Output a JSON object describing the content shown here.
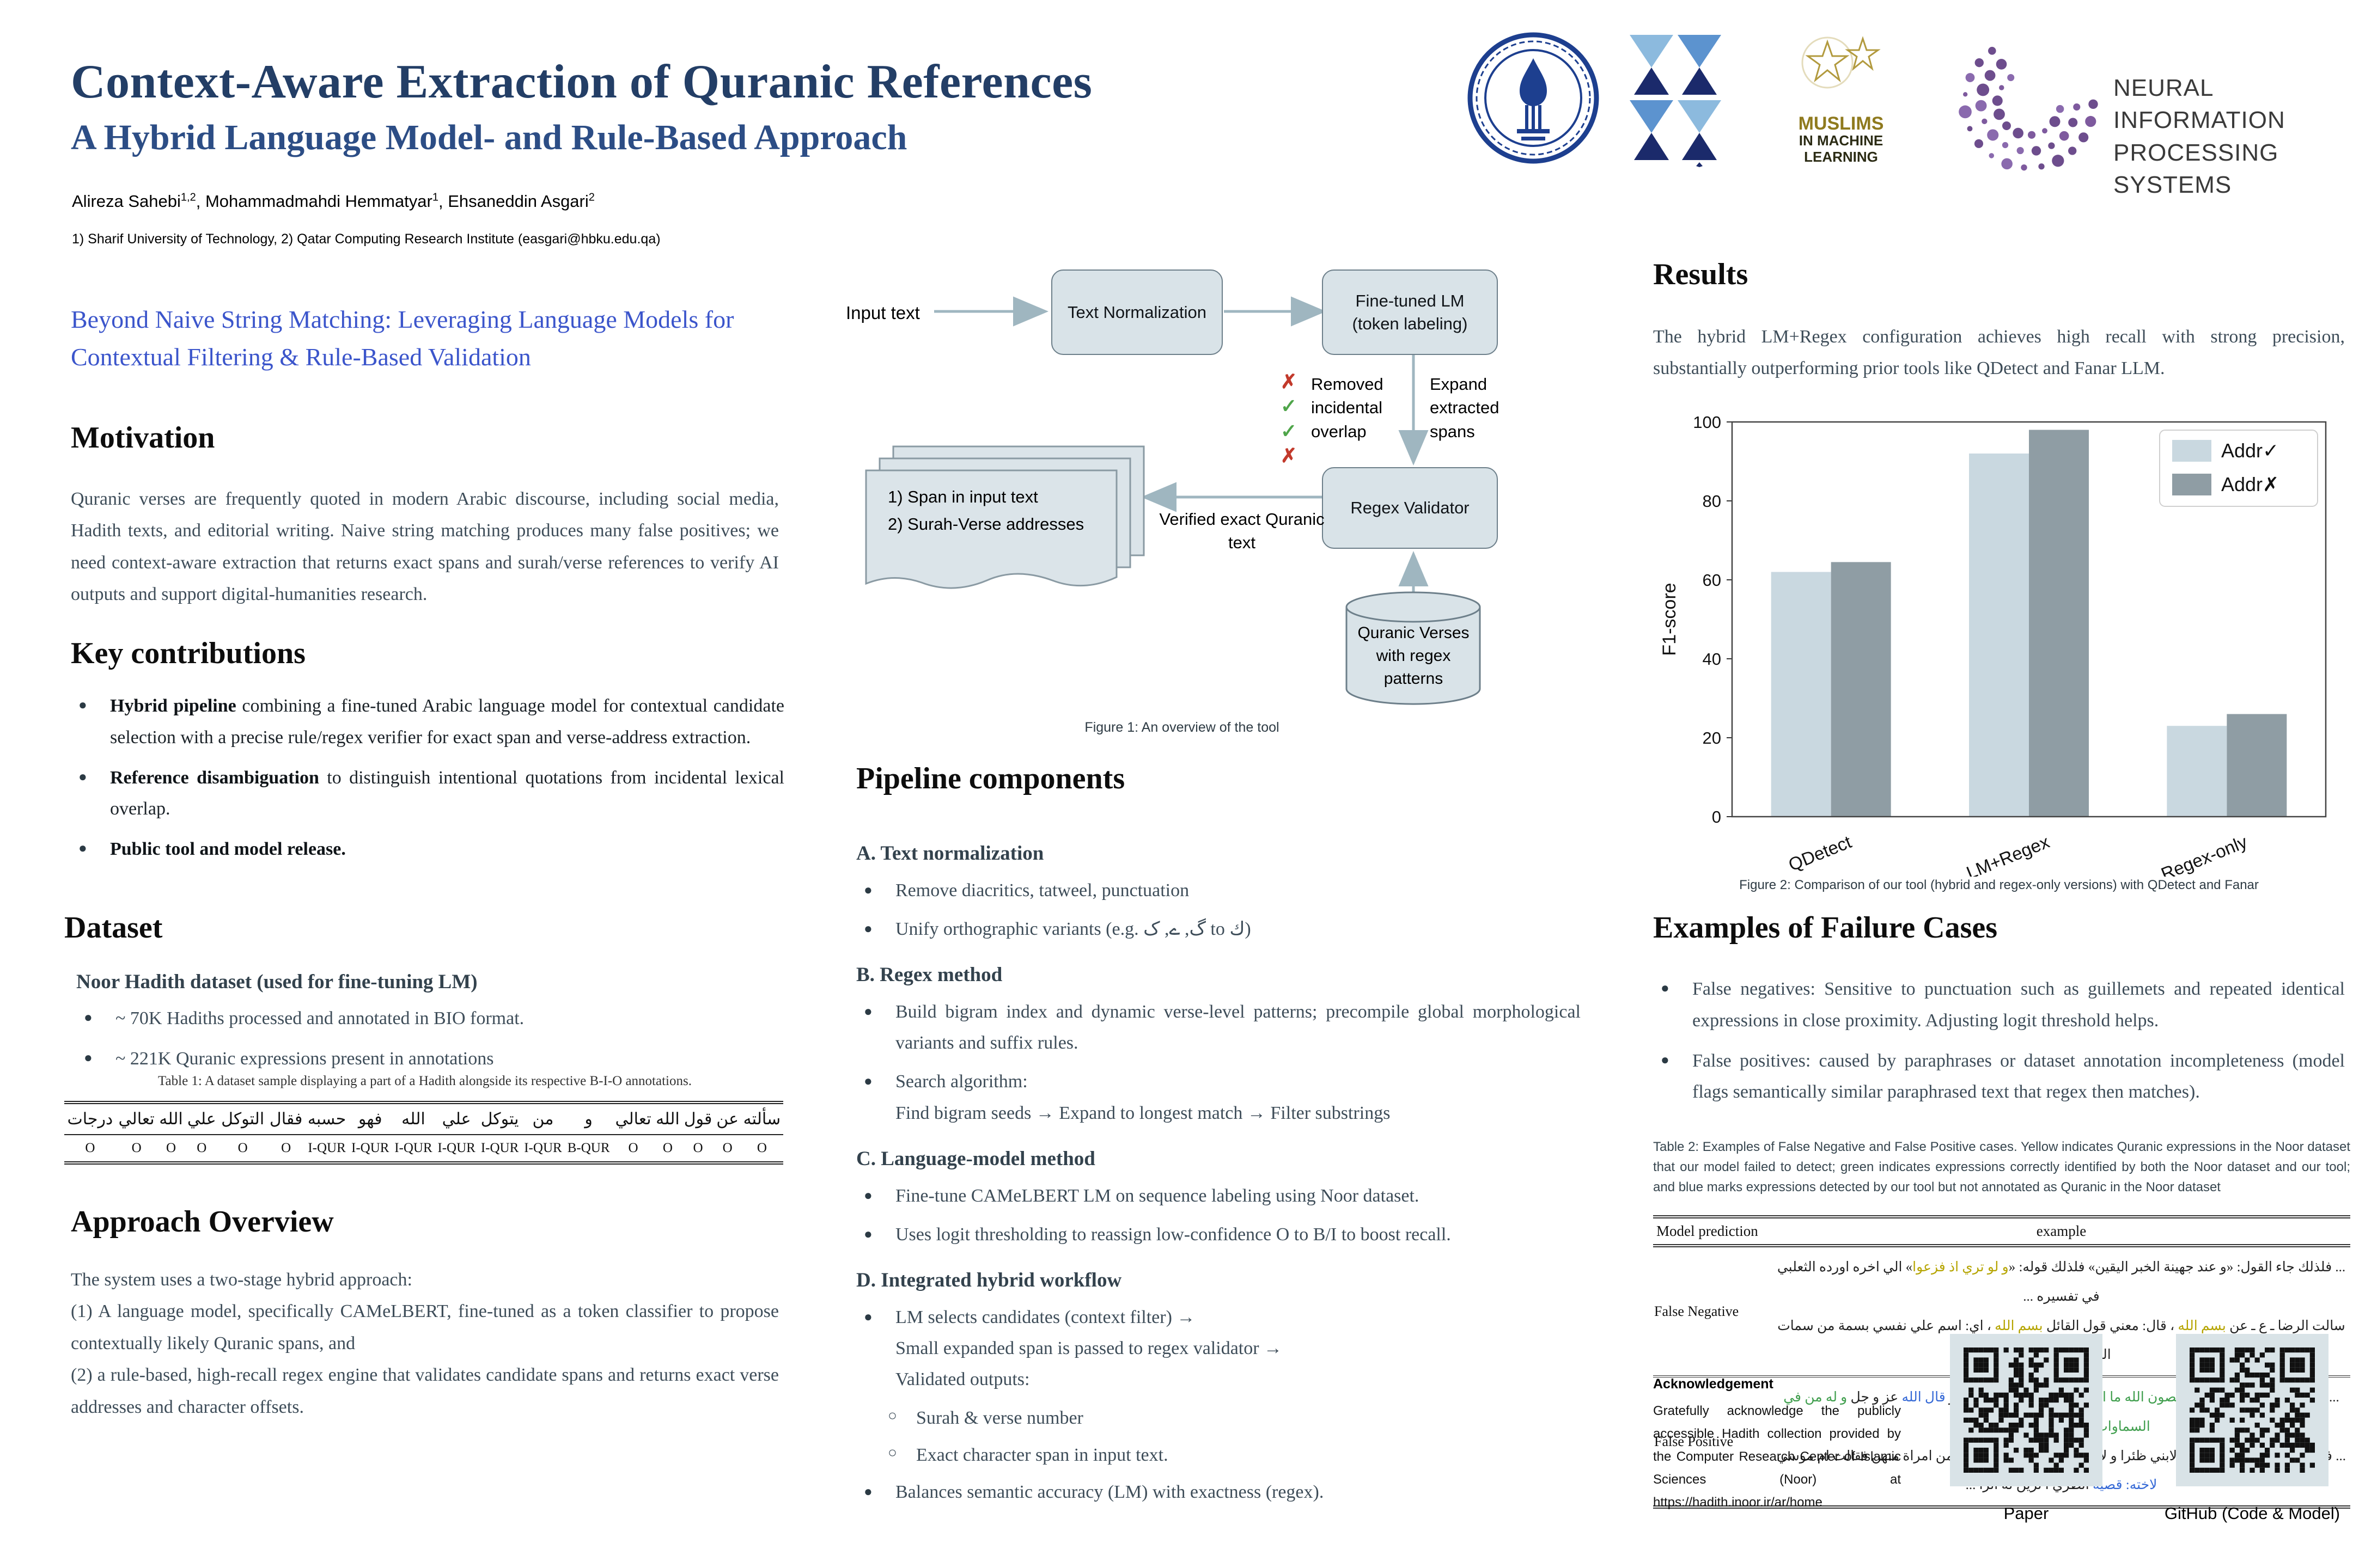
{
  "header": {
    "title": "Context-Aware Extraction of Quranic References",
    "subtitle": "A Hybrid Language Model- and Rule-Based Approach",
    "authors": [
      {
        "name": "Alireza Sahebi",
        "sup": "1,2"
      },
      {
        "name": "Mohammadmahdi Hemmatyar",
        "sup": "1"
      },
      {
        "name": "Ehsaneddin Asgari",
        "sup": "2"
      }
    ],
    "affiliation": "1) Sharif University of Technology, 2) Qatar Computing Research Institute (easgari@hbku.edu.qa)"
  },
  "logos": {
    "sharif": "Sharif University of Technology",
    "miml_lines": [
      "MUSLIMS",
      "IN MACHINE",
      "LEARNING"
    ],
    "neurips_lines": [
      "NEURAL INFORMATION",
      "PROCESSING SYSTEMS"
    ]
  },
  "left": {
    "lead": "Beyond Naive String Matching: Leveraging Language Models for Contextual Filtering & Rule-Based Validation",
    "motivation_heading": "Motivation",
    "motivation_text": "Quranic verses are frequently quoted in modern Arabic discourse, including social media, Hadith texts, and editorial writing. Naive string matching produces many false positives; we need context-aware extraction that returns exact spans and surah/verse references to verify AI outputs and support digital-humanities research.",
    "key_heading": "Key contributions",
    "key_bullets": [
      {
        "bold": "Hybrid pipeline",
        "text": " combining a fine-tuned Arabic language model for contextual candidate selection with a precise rule/regex verifier for exact span and verse-address extraction."
      },
      {
        "bold": "Reference disambiguation",
        "text": " to distinguish intentional quotations from incidental lexical overlap."
      },
      {
        "bold": "Public tool and model release.",
        "text": ""
      }
    ],
    "dataset_heading": "Dataset",
    "dataset_subheading": "Noor Hadith dataset (used for fine-tuning LM)",
    "dataset_bullets": [
      "~ 70K Hadiths processed and annotated in BIO format.",
      "~ 221K Quranic expressions present in annotations"
    ],
    "table1_caption": "Table 1: A dataset sample displaying a part of a Hadith alongside its respective B-I-O annotations.",
    "table1_tokens": [
      {
        "ar": "سألته",
        "tag": "O"
      },
      {
        "ar": "عن",
        "tag": "O"
      },
      {
        "ar": "قول",
        "tag": "O"
      },
      {
        "ar": "الله",
        "tag": "O"
      },
      {
        "ar": "تعالي",
        "tag": "O"
      },
      {
        "ar": "و",
        "tag": "B-QUR"
      },
      {
        "ar": "من",
        "tag": "I-QUR"
      },
      {
        "ar": "يتوكل",
        "tag": "I-QUR"
      },
      {
        "ar": "علي",
        "tag": "I-QUR"
      },
      {
        "ar": "الله",
        "tag": "I-QUR"
      },
      {
        "ar": "فهو",
        "tag": "I-QUR"
      },
      {
        "ar": "حسبه",
        "tag": "I-QUR"
      },
      {
        "ar": "فقال",
        "tag": "O"
      },
      {
        "ar": "التوكل",
        "tag": "O"
      },
      {
        "ar": "علي",
        "tag": "O"
      },
      {
        "ar": "الله",
        "tag": "O"
      },
      {
        "ar": "تعالي",
        "tag": "O"
      },
      {
        "ar": "درجات",
        "tag": "O"
      }
    ],
    "approach_heading": "Approach Overview",
    "approach_lines": [
      "The system uses a two-stage hybrid approach:",
      "(1) A language model, specifically CAMeLBERT, fine-tuned as a token classifier to propose contextually likely Quranic spans, and",
      "(2) a rule-based, high-recall regex engine that validates candidate spans and returns exact verse addresses and character offsets."
    ]
  },
  "figure1": {
    "input_label": "Input text",
    "box_normalization": "Text Normalization",
    "box_lm": "Fine-tuned LM (token labeling)",
    "marks": [
      "✗",
      "✓",
      "✓",
      "✗"
    ],
    "removed_label": "Removed incidental overlap",
    "expand_label": "Expand extracted spans",
    "box_regex": "Regex Validator",
    "verified_label": "Verified exact Quranic text",
    "outputs": [
      "1) Span in input text",
      "2) Surah-Verse addresses"
    ],
    "db_label": "Quranic Verses with regex patterns",
    "caption": "Figure 1: An overview of the tool"
  },
  "pipeline": {
    "heading": "Pipeline components",
    "sections": [
      {
        "title": "A. Text normalization",
        "items": [
          {
            "lines": [
              "Remove diacritics, tatweel, punctuation"
            ]
          },
          {
            "lines": [
              "Unify orthographic variants (e.g. گ, ے, ک to ك)"
            ]
          }
        ]
      },
      {
        "title": "B. Regex method",
        "items": [
          {
            "lines": [
              "Build bigram index and dynamic verse-level patterns; precompile global morphological variants and suffix rules."
            ]
          },
          {
            "lines": [
              "Search algorithm:",
              "Find bigram seeds → Expand to longest match → Filter substrings"
            ]
          }
        ]
      },
      {
        "title": "C. Language-model method",
        "items": [
          {
            "lines": [
              "Fine-tune CAMeLBERT LM on sequence labeling using Noor dataset."
            ]
          },
          {
            "lines": [
              "Uses logit thresholding to reassign low-confidence O to B/I to boost recall."
            ]
          }
        ]
      },
      {
        "title": "D. Integrated hybrid workflow",
        "items": [
          {
            "lines": [
              "LM selects candidates (context filter) →",
              "Small expanded span is passed to regex validator →",
              "Validated outputs:"
            ],
            "sub": [
              "Surah & verse number",
              "Exact character span in input text."
            ]
          },
          {
            "lines": [
              "Balances semantic accuracy (LM) with exactness (regex)."
            ]
          }
        ]
      }
    ]
  },
  "results": {
    "heading": "Results",
    "text": "The hybrid LM+Regex configuration achieves high recall with strong precision, substantially outperforming prior tools like QDetect and Fanar LLM."
  },
  "chart_data": {
    "type": "bar",
    "title": "",
    "categories": [
      "QDetect",
      "LM+Regex",
      "Regex-only"
    ],
    "series": [
      {
        "name": "Addr✓",
        "values": [
          62,
          92,
          23
        ],
        "color": "#c9d8e0"
      },
      {
        "name": "Addr✗",
        "values": [
          64.5,
          98,
          26
        ],
        "color": "#8f9da4"
      }
    ],
    "xlabel": "",
    "ylabel": "F1-score",
    "ylim": [
      0,
      100
    ],
    "yticks": [
      0,
      20,
      40,
      60,
      80,
      100
    ],
    "grid": false,
    "legend_position": "upper right",
    "caption": "Figure 2: Comparison of our tool (hybrid and regex-only versions) with QDetect and Fanar"
  },
  "failure": {
    "heading": "Examples of Failure Cases",
    "bullets": [
      "False negatives: Sensitive to punctuation such as guillemets and repeated identical expressions in close proximity. Adjusting logit threshold helps.",
      "False positives: caused by paraphrases or dataset annotation incompleteness (model flags semantically similar paraphrased text that regex then matches)."
    ]
  },
  "table2": {
    "caption": "Table 2: Examples of False Negative and False Positive cases. Yellow indicates Quranic expressions in the Noor dataset that our model failed to detect; green indicates expressions correctly identified by both the Noor dataset and our tool; and blue marks expressions detected by our tool but not annotated as Quranic in the Noor dataset",
    "headers": [
      "Model prediction",
      "example"
    ],
    "rows": [
      {
        "label": "False Negative",
        "lines": [
          [
            {
              "t": "... فلذلك جاء القول: «و عند جهينة الخبر اليقين» فلذلك قوله: «"
            },
            {
              "t": "و لو تري اذ فزعوا",
              "c": "y"
            },
            {
              "t": "» الي اخره اورده الثعلبي في تفسيره ..."
            }
          ],
          [
            {
              "t": "سالت الرضا ـ ع ـ عن "
            },
            {
              "t": "بسم الله",
              "c": "y"
            },
            {
              "t": " ، قال: معني قول القائل "
            },
            {
              "t": "بسم الله",
              "c": "y"
            },
            {
              "t": " ، اي: اسم علي نفسي بسمة من سمات الله ـ عز و جل ـ ..."
            }
          ]
        ]
      },
      {
        "label": "False Positive",
        "lines": [
          [
            {
              "t": "... قال الله عز و جل فيهم "
            },
            {
              "t": "لا يعصون الله ما امرهم و يفعلون ما يؤمرون",
              "c": "g"
            },
            {
              "t": " و "
            },
            {
              "t": "قال الله",
              "c": "b"
            },
            {
              "t": " عز و جل "
            },
            {
              "t": "و له من في السماوات و الارض و من عنده",
              "c": "g"
            },
            {
              "t": " ..."
            }
          ],
          [
            {
              "t": "... فقالت امراة فرعون: اطلبوا لابني ظئرا و لا تحقروا احدا فجعل لا يقبل من امراة منهن فقالت ام موسي "
            },
            {
              "t": "لاخته: قصيه",
              "c": "b"
            },
            {
              "t": " انظري أ ترين له اثرا ..."
            }
          ]
        ]
      }
    ]
  },
  "acknowledgement": {
    "heading": "Acknowledgement",
    "text": "Gratefully acknowledge the publicly accessible Hadith collection provided by the Computer Research Center of Islamic Sciences (Noor) at https://hadith.inoor.ir/ar/home"
  },
  "qr": {
    "paper_label": "Paper",
    "github_label": "GitHub (Code & Model)"
  }
}
